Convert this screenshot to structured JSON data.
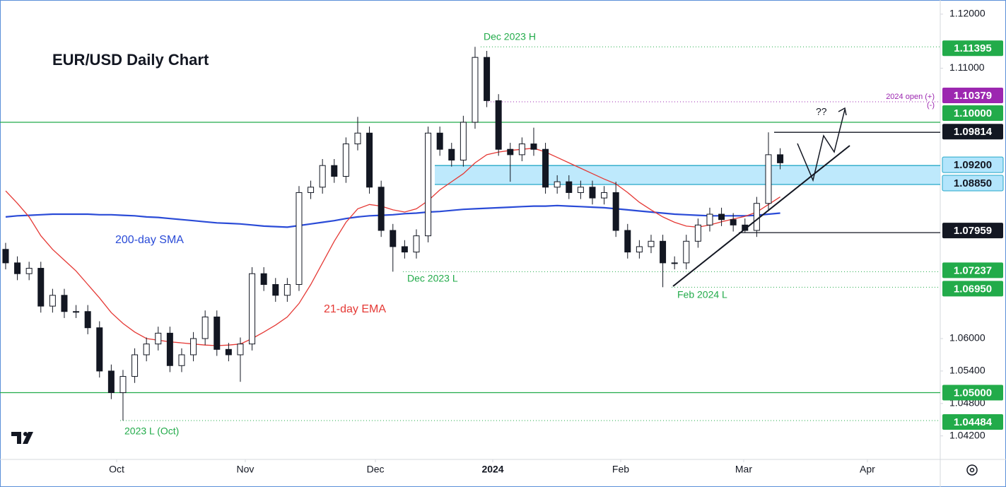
{
  "chart_data": {
    "type": "candlestick",
    "title": "EUR/USD Daily Chart",
    "ylim": [
      1.03765,
      1.12261
    ],
    "yticks": [
      {
        "value": 1.12,
        "label": "1.12000"
      },
      {
        "value": 1.11,
        "label": "1.11000"
      },
      {
        "value": 1.06,
        "label": "1.06000"
      },
      {
        "value": 1.054,
        "label": "1.05400"
      },
      {
        "value": 1.048,
        "label": "1.04800"
      },
      {
        "value": 1.042,
        "label": "1.04200"
      }
    ],
    "xlim": [
      -0.48,
      79.64
    ],
    "xticks": [
      {
        "value": 9.46,
        "label": "Oct"
      },
      {
        "value": 20.42,
        "label": "Nov"
      },
      {
        "value": 31.51,
        "label": "Dec"
      },
      {
        "value": 41.51,
        "label": "2024"
      },
      {
        "value": 52.41,
        "label": "Feb"
      },
      {
        "value": 62.89,
        "label": "Mar"
      },
      {
        "value": 73.43,
        "label": "Apr"
      }
    ],
    "candles": {
      "up_color": "#ffffff",
      "down_color": "#131722",
      "open": [
        1.0765,
        1.074,
        1.072,
        1.073,
        1.066,
        1.068,
        1.065,
        1.065,
        1.062,
        1.054,
        1.05,
        1.053,
        1.057,
        1.059,
        1.061,
        1.055,
        1.057,
        1.06,
        1.064,
        1.058,
        1.057,
        1.059,
        1.072,
        1.07,
        1.068,
        1.07,
        1.087,
        1.088,
        1.092,
        1.09,
        1.096,
        1.098,
        1.088,
        1.08,
        1.077,
        1.076,
        1.079,
        1.098,
        1.095,
        1.093,
        1.1,
        1.112,
        1.104,
        1.095,
        1.094,
        1.096,
        1.095,
        1.088,
        1.089,
        1.087,
        1.088,
        1.086,
        1.087,
        1.08,
        1.076,
        1.077,
        1.078,
        1.074,
        1.074,
        1.078,
        1.081,
        1.083,
        1.082,
        1.081,
        1.08,
        1.085,
        1.094
      ],
      "high": [
        1.0777,
        1.0752,
        1.0742,
        1.0742,
        1.0692,
        1.0692,
        1.0662,
        1.0662,
        1.0632,
        1.0552,
        1.0542,
        1.0582,
        1.0602,
        1.0622,
        1.0622,
        1.0582,
        1.0612,
        1.0652,
        1.0652,
        1.0592,
        1.0602,
        1.0732,
        1.0732,
        1.0712,
        1.0712,
        1.0882,
        1.0892,
        1.0932,
        1.0932,
        1.0972,
        1.101,
        1.0992,
        1.0892,
        1.0812,
        1.0782,
        1.0802,
        1.0992,
        1.0992,
        1.0962,
        1.1012,
        1.11395,
        1.1132,
        1.1052,
        1.0962,
        1.0972,
        1.099,
        1.0962,
        1.0902,
        1.0902,
        1.0892,
        1.0892,
        1.0882,
        1.089,
        1.0812,
        1.0782,
        1.0792,
        1.0792,
        1.0752,
        1.0792,
        1.0822,
        1.0842,
        1.0842,
        1.0832,
        1.0822,
        1.0862,
        1.09814,
        1.0952
      ],
      "low": [
        1.0728,
        1.0708,
        1.0708,
        1.0648,
        1.0648,
        1.0638,
        1.0638,
        1.0608,
        1.0528,
        1.0488,
        1.04484,
        1.0518,
        1.0558,
        1.0578,
        1.0538,
        1.0538,
        1.0558,
        1.0588,
        1.0568,
        1.0558,
        1.052,
        1.0578,
        1.0688,
        1.0668,
        1.0668,
        1.0688,
        1.0858,
        1.0868,
        1.0888,
        1.0888,
        1.0948,
        1.0868,
        1.0788,
        1.07237,
        1.0748,
        1.0748,
        1.0778,
        1.0938,
        1.0918,
        1.0918,
        1.0988,
        1.1028,
        1.0938,
        1.089,
        1.0928,
        1.0938,
        1.0868,
        1.0868,
        1.0858,
        1.0858,
        1.0848,
        1.0848,
        1.0788,
        1.0748,
        1.0748,
        1.0758,
        1.0695,
        1.0728,
        1.0728,
        1.0768,
        1.0798,
        1.0808,
        1.0798,
        1.07959,
        1.0788,
        1.0838,
        1.0913
      ],
      "close": [
        1.074,
        1.072,
        1.073,
        1.066,
        1.068,
        1.065,
        1.065,
        1.062,
        1.054,
        1.05,
        1.053,
        1.057,
        1.059,
        1.061,
        1.055,
        1.057,
        1.06,
        1.064,
        1.058,
        1.057,
        1.059,
        1.072,
        1.07,
        1.068,
        1.07,
        1.087,
        1.088,
        1.092,
        1.09,
        1.096,
        1.098,
        1.088,
        1.08,
        1.077,
        1.076,
        1.079,
        1.098,
        1.095,
        1.093,
        1.1,
        1.112,
        1.104,
        1.095,
        1.094,
        1.096,
        1.095,
        1.088,
        1.089,
        1.087,
        1.088,
        1.086,
        1.087,
        1.08,
        1.076,
        1.077,
        1.078,
        1.074,
        1.074,
        1.078,
        1.081,
        1.083,
        1.082,
        1.081,
        1.08,
        1.085,
        1.094,
        1.0925
      ]
    },
    "series": [
      {
        "name": "200-day SMA",
        "color": "#2a4bd7",
        "values": [
          1.0825,
          1.0827,
          1.0828,
          1.0829,
          1.083,
          1.083,
          1.083,
          1.083,
          1.0829,
          1.0829,
          1.0828,
          1.0827,
          1.0825,
          1.0824,
          1.0822,
          1.082,
          1.0818,
          1.0816,
          1.0814,
          1.0813,
          1.0812,
          1.081,
          1.0808,
          1.0807,
          1.0806,
          1.0809,
          1.0812,
          1.0815,
          1.0818,
          1.0822,
          1.0825,
          1.0827,
          1.0828,
          1.0829,
          1.0831,
          1.0832,
          1.0834,
          1.0835,
          1.0837,
          1.0839,
          1.084,
          1.0841,
          1.0842,
          1.0843,
          1.0844,
          1.0845,
          1.0845,
          1.0846,
          1.0845,
          1.0844,
          1.0843,
          1.0842,
          1.084,
          1.0838,
          1.0836,
          1.0834,
          1.0832,
          1.083,
          1.0829,
          1.0828,
          1.0827,
          1.0827,
          1.0827,
          1.0827,
          1.0828,
          1.083,
          1.0832
        ]
      },
      {
        "name": "21-day EMA",
        "color": "#e53935",
        "values": [
          1.0873,
          1.085,
          1.0825,
          1.079,
          1.0765,
          1.0745,
          1.0725,
          1.07,
          1.0675,
          1.0648,
          1.0628,
          1.0612,
          1.06,
          1.0597,
          1.0594,
          1.0592,
          1.059,
          1.0588,
          1.0587,
          1.0588,
          1.059,
          1.06,
          1.0612,
          1.0625,
          1.064,
          1.0665,
          1.07,
          1.074,
          1.078,
          1.0815,
          1.084,
          1.0848,
          1.0845,
          1.0838,
          1.0834,
          1.084,
          1.0855,
          1.0875,
          1.089,
          1.0905,
          1.0925,
          1.094,
          1.0945,
          1.0948,
          1.095,
          1.0952,
          1.0945,
          1.0935,
          1.0925,
          1.0915,
          1.0905,
          1.0895,
          1.0886,
          1.087,
          1.0852,
          1.0838,
          1.0825,
          1.0815,
          1.0808,
          1.0806,
          1.081,
          1.0816,
          1.0821,
          1.0826,
          1.0834,
          1.0848,
          1.0862
        ]
      }
    ],
    "levels": [
      {
        "value": 1.11395,
        "label": "1.11395",
        "color": "#22ab4a",
        "text_color": "#ffffff",
        "line": "dotted"
      },
      {
        "value": 1.10379,
        "label": "1.10379",
        "color": "#9c27b0",
        "text_color": "#ffffff",
        "line": "dotted"
      },
      {
        "value": 1.1,
        "label": "1.10000",
        "color": "#22ab4a",
        "text_color": "#ffffff",
        "line": "solid"
      },
      {
        "value": 1.09814,
        "label": "1.09814",
        "color": "#131722",
        "text_color": "#ffffff",
        "line": "solid"
      },
      {
        "value": 1.092,
        "label": "1.09200",
        "color": "#b3e5fc",
        "text_color": "#131722",
        "line": "solid"
      },
      {
        "value": 1.0885,
        "label": "1.08850",
        "color": "#b3e5fc",
        "text_color": "#131722",
        "line": "solid"
      },
      {
        "value": 1.07959,
        "label": "1.07959",
        "color": "#131722",
        "text_color": "#ffffff",
        "line": "solid"
      },
      {
        "value": 1.07237,
        "label": "1.07237",
        "color": "#22ab4a",
        "text_color": "#ffffff",
        "line": "dotted"
      },
      {
        "value": 1.0695,
        "label": "1.06950",
        "color": "#22ab4a",
        "text_color": "#ffffff",
        "line": "dotted"
      },
      {
        "value": 1.05,
        "label": "1.05000",
        "color": "#22ab4a",
        "text_color": "#ffffff",
        "line": "solid"
      },
      {
        "value": 1.04484,
        "label": "1.04484",
        "color": "#22ab4a",
        "text_color": "#ffffff",
        "line": "dotted"
      }
    ],
    "annotations": [
      {
        "text": "Dec 2023 H",
        "color": "#22ab4a"
      },
      {
        "text": "2024 open (+)",
        "color": "#9c27b0"
      },
      {
        "text": "(-)",
        "color": "#9c27b0"
      },
      {
        "text": "??",
        "color": "#131722"
      },
      {
        "text": "Dec 2023 L",
        "color": "#22ab4a"
      },
      {
        "text": "Feb 2024 L",
        "color": "#22ab4a"
      },
      {
        "text": "2023 L (Oct)",
        "color": "#22ab4a"
      }
    ]
  }
}
